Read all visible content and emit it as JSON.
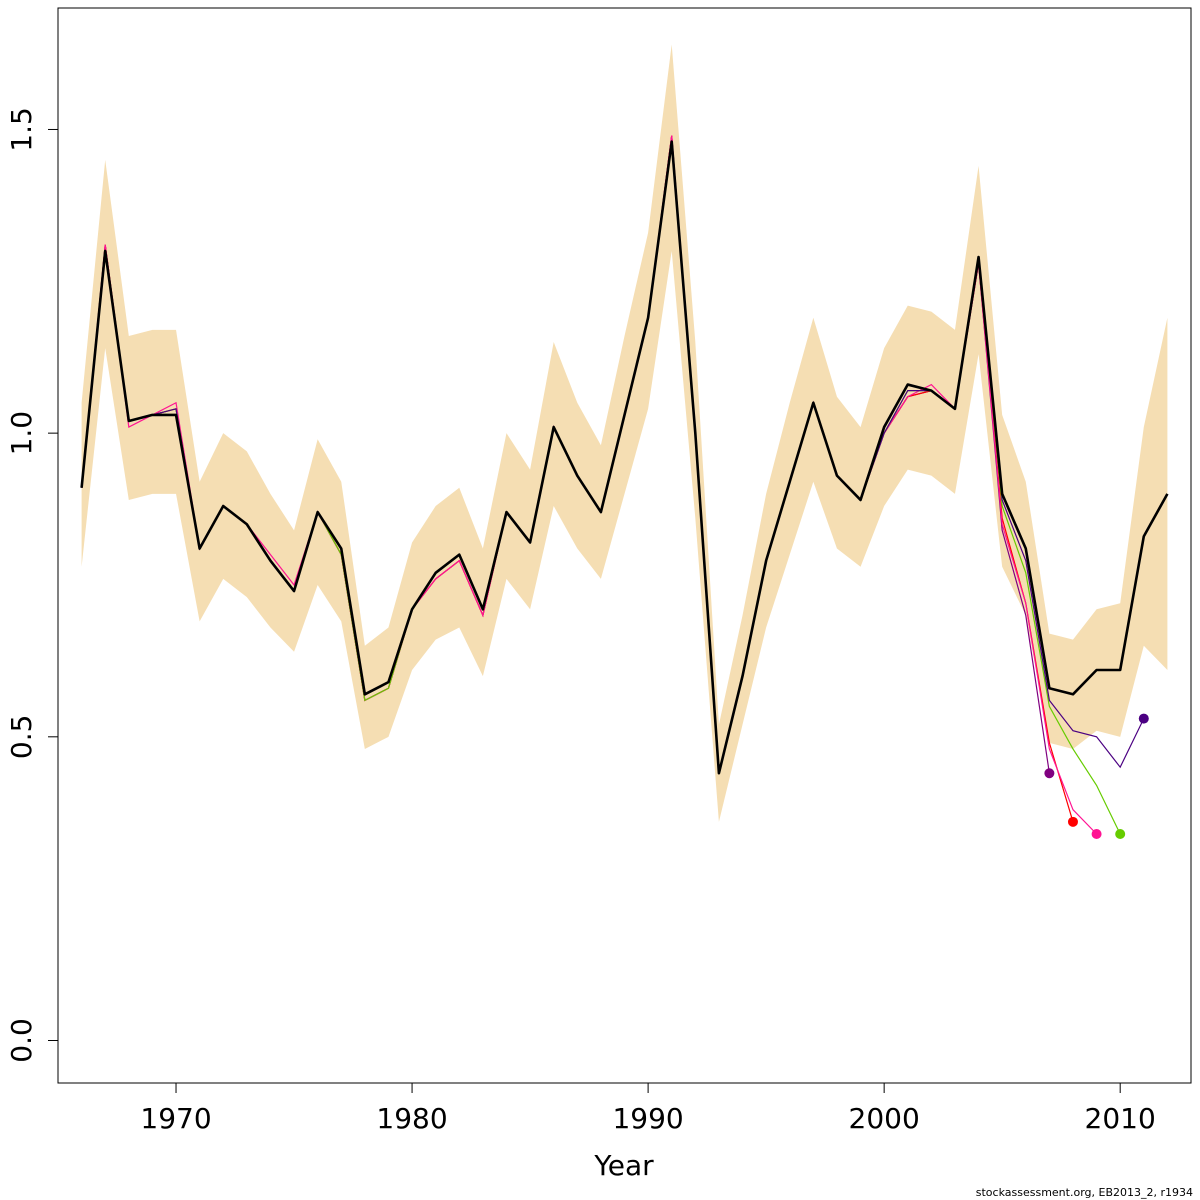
{
  "chart_data": {
    "type": "line",
    "title": "",
    "xlabel": "Year",
    "ylabel": "",
    "xlim": [
      1965,
      2013
    ],
    "ylim": [
      -0.07,
      1.7
    ],
    "x_ticks": [
      1970,
      1980,
      1990,
      2000,
      2010
    ],
    "x_tick_labels": [
      "1970",
      "1980",
      "1990",
      "2000",
      "2010"
    ],
    "y_ticks": [
      0.0,
      0.5,
      1.0,
      1.5
    ],
    "y_tick_labels": [
      "0.0",
      "0.5",
      "1.0",
      "1.5"
    ],
    "grid": false,
    "credit": "stockassessment.org, EB2013_2, r1934",
    "colors": {
      "band": "#f5deb3",
      "main": "#000000",
      "retro": [
        "#800080",
        "#ff0000",
        "#ff1493",
        "#66cc00",
        "#4b0082"
      ]
    },
    "confidence_band": {
      "x": [
        1966,
        1967,
        1968,
        1969,
        1970,
        1971,
        1972,
        1973,
        1974,
        1975,
        1976,
        1977,
        1978,
        1979,
        1980,
        1981,
        1982,
        1983,
        1984,
        1985,
        1986,
        1987,
        1988,
        1989,
        1990,
        1991,
        1992,
        1993,
        1994,
        1995,
        1996,
        1997,
        1998,
        1999,
        2000,
        2001,
        2002,
        2003,
        2004,
        2005,
        2006,
        2007,
        2008,
        2009,
        2010,
        2011,
        2012
      ],
      "lower": [
        0.78,
        1.14,
        0.89,
        0.9,
        0.9,
        0.69,
        0.76,
        0.73,
        0.68,
        0.64,
        0.75,
        0.69,
        0.48,
        0.5,
        0.61,
        0.66,
        0.68,
        0.6,
        0.76,
        0.71,
        0.88,
        0.81,
        0.76,
        0.9,
        1.04,
        1.3,
        0.86,
        0.36,
        0.52,
        0.68,
        0.8,
        0.92,
        0.81,
        0.78,
        0.88,
        0.94,
        0.93,
        0.9,
        1.13,
        0.78,
        0.7,
        0.49,
        0.48,
        0.51,
        0.5,
        0.65,
        0.61
      ],
      "upper": [
        1.05,
        1.45,
        1.16,
        1.17,
        1.17,
        0.92,
        1.0,
        0.97,
        0.9,
        0.84,
        0.99,
        0.92,
        0.65,
        0.68,
        0.82,
        0.88,
        0.91,
        0.81,
        1.0,
        0.94,
        1.15,
        1.05,
        0.98,
        1.16,
        1.33,
        1.64,
        1.15,
        0.52,
        0.7,
        0.9,
        1.05,
        1.19,
        1.06,
        1.01,
        1.14,
        1.21,
        1.2,
        1.17,
        1.44,
        1.03,
        0.92,
        0.67,
        0.66,
        0.71,
        0.72,
        1.01,
        1.19
      ]
    },
    "series": [
      {
        "x": [
          1966,
          1967,
          1968,
          1969,
          1970,
          1971,
          1972,
          1973,
          1974,
          1975,
          1976,
          1977,
          1978,
          1979,
          1980,
          1981,
          1982,
          1983,
          1984,
          1985,
          1986,
          1987,
          1988,
          1989,
          1990,
          1991,
          1992,
          1993,
          1994,
          1995,
          1996,
          1997,
          1998,
          1999,
          2000,
          2001,
          2002,
          2003,
          2004,
          2005,
          2006,
          2007,
          2008,
          2009,
          2010,
          2011,
          2012
        ],
        "values": [
          0.91,
          1.3,
          1.02,
          1.03,
          1.03,
          0.81,
          0.88,
          0.85,
          0.79,
          0.74,
          0.87,
          0.81,
          0.57,
          0.59,
          0.71,
          0.77,
          0.8,
          0.71,
          0.87,
          0.82,
          1.01,
          0.93,
          0.87,
          1.03,
          1.19,
          1.48,
          1.0,
          0.44,
          0.6,
          0.79,
          0.92,
          1.05,
          0.93,
          0.89,
          1.01,
          1.08,
          1.07,
          1.04,
          1.29,
          0.9,
          0.81,
          0.58,
          0.57,
          0.61,
          0.61,
          0.83,
          0.9
        ]
      },
      {
        "x": [
          1966,
          1967,
          1968,
          1969,
          1970,
          1971,
          1972,
          1973,
          1974,
          1975,
          1976,
          1977,
          1978,
          1979,
          1980,
          1981,
          1982,
          1983,
          1984,
          1985,
          1986,
          1987,
          1988,
          1989,
          1990,
          1991,
          1992,
          1993,
          1994,
          1995,
          1996,
          1997,
          1998,
          1999,
          2000,
          2001,
          2002,
          2003,
          2004,
          2005,
          2006,
          2007
        ],
        "values": [
          0.91,
          1.31,
          1.02,
          1.03,
          1.04,
          0.81,
          0.88,
          0.85,
          0.79,
          0.74,
          0.87,
          0.8,
          0.56,
          0.58,
          0.71,
          0.76,
          0.79,
          0.7,
          0.87,
          0.82,
          1.01,
          0.93,
          0.87,
          1.03,
          1.19,
          1.49,
          1.0,
          0.44,
          0.6,
          0.79,
          0.92,
          1.05,
          0.93,
          0.89,
          1.0,
          1.06,
          1.07,
          1.04,
          1.28,
          0.84,
          0.7,
          0.44
        ]
      },
      {
        "x": [
          1966,
          1967,
          1968,
          1969,
          1970,
          1971,
          1972,
          1973,
          1974,
          1975,
          1976,
          1977,
          1978,
          1979,
          1980,
          1981,
          1982,
          1983,
          1984,
          1985,
          1986,
          1987,
          1988,
          1989,
          1990,
          1991,
          1992,
          1993,
          1994,
          1995,
          1996,
          1997,
          1998,
          1999,
          2000,
          2001,
          2002,
          2003,
          2004,
          2005,
          2006,
          2007,
          2008
        ],
        "values": [
          0.91,
          1.31,
          1.02,
          1.03,
          1.04,
          0.81,
          0.88,
          0.85,
          0.79,
          0.74,
          0.87,
          0.8,
          0.56,
          0.58,
          0.71,
          0.76,
          0.79,
          0.7,
          0.87,
          0.82,
          1.01,
          0.93,
          0.87,
          1.03,
          1.19,
          1.49,
          1.0,
          0.44,
          0.6,
          0.79,
          0.92,
          1.05,
          0.93,
          0.89,
          1.0,
          1.06,
          1.07,
          1.04,
          1.28,
          0.86,
          0.72,
          0.49,
          0.36
        ]
      },
      {
        "x": [
          1966,
          1967,
          1968,
          1969,
          1970,
          1971,
          1972,
          1973,
          1974,
          1975,
          1976,
          1977,
          1978,
          1979,
          1980,
          1981,
          1982,
          1983,
          1984,
          1985,
          1986,
          1987,
          1988,
          1989,
          1990,
          1991,
          1992,
          1993,
          1994,
          1995,
          1996,
          1997,
          1998,
          1999,
          2000,
          2001,
          2002,
          2003,
          2004,
          2005,
          2006,
          2007,
          2008,
          2009
        ],
        "values": [
          0.91,
          1.31,
          1.01,
          1.03,
          1.05,
          0.81,
          0.88,
          0.85,
          0.8,
          0.75,
          0.87,
          0.8,
          0.56,
          0.58,
          0.71,
          0.76,
          0.79,
          0.7,
          0.87,
          0.82,
          1.01,
          0.93,
          0.87,
          1.03,
          1.19,
          1.49,
          1.0,
          0.44,
          0.6,
          0.79,
          0.92,
          1.05,
          0.93,
          0.89,
          1.0,
          1.06,
          1.08,
          1.04,
          1.28,
          0.85,
          0.72,
          0.48,
          0.38,
          0.34
        ]
      },
      {
        "x": [
          1966,
          1967,
          1968,
          1969,
          1970,
          1971,
          1972,
          1973,
          1974,
          1975,
          1976,
          1977,
          1978,
          1979,
          1980,
          1981,
          1982,
          1983,
          1984,
          1985,
          1986,
          1987,
          1988,
          1989,
          1990,
          1991,
          1992,
          1993,
          1994,
          1995,
          1996,
          1997,
          1998,
          1999,
          2000,
          2001,
          2002,
          2003,
          2004,
          2005,
          2006,
          2007,
          2008,
          2009,
          2010
        ],
        "values": [
          0.91,
          1.3,
          1.02,
          1.03,
          1.04,
          0.81,
          0.88,
          0.85,
          0.79,
          0.74,
          0.87,
          0.8,
          0.56,
          0.58,
          0.71,
          0.77,
          0.8,
          0.71,
          0.87,
          0.82,
          1.01,
          0.93,
          0.87,
          1.03,
          1.19,
          1.48,
          1.0,
          0.44,
          0.6,
          0.79,
          0.92,
          1.05,
          0.93,
          0.89,
          1.0,
          1.07,
          1.07,
          1.04,
          1.29,
          0.88,
          0.77,
          0.55,
          0.48,
          0.42,
          0.34
        ]
      },
      {
        "x": [
          1966,
          1967,
          1968,
          1969,
          1970,
          1971,
          1972,
          1973,
          1974,
          1975,
          1976,
          1977,
          1978,
          1979,
          1980,
          1981,
          1982,
          1983,
          1984,
          1985,
          1986,
          1987,
          1988,
          1989,
          1990,
          1991,
          1992,
          1993,
          1994,
          1995,
          1996,
          1997,
          1998,
          1999,
          2000,
          2001,
          2002,
          2003,
          2004,
          2005,
          2006,
          2007,
          2008,
          2009,
          2010,
          2011
        ],
        "values": [
          0.91,
          1.3,
          1.02,
          1.03,
          1.04,
          0.81,
          0.88,
          0.85,
          0.79,
          0.74,
          0.87,
          0.81,
          0.57,
          0.59,
          0.71,
          0.77,
          0.8,
          0.71,
          0.87,
          0.82,
          1.01,
          0.93,
          0.87,
          1.03,
          1.19,
          1.48,
          1.0,
          0.44,
          0.6,
          0.79,
          0.92,
          1.05,
          0.93,
          0.89,
          1.0,
          1.07,
          1.07,
          1.04,
          1.29,
          0.89,
          0.79,
          0.56,
          0.51,
          0.5,
          0.45,
          0.53
        ]
      }
    ]
  }
}
